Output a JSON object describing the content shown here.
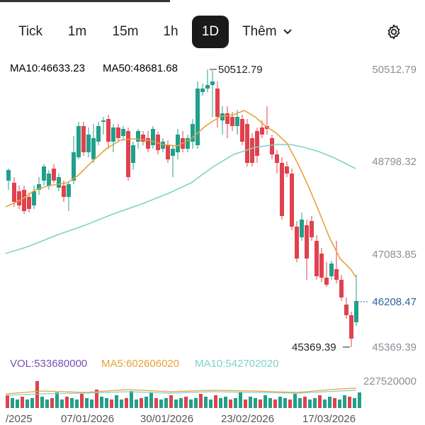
{
  "tabs": {
    "tick": "Tick",
    "m1": "1m",
    "m15": "15m",
    "h1": "1h",
    "d1": "1D",
    "more": "Thêm",
    "active": "1D"
  },
  "colors": {
    "up": "#20a08a",
    "down": "#e0414e",
    "ma10": "#e3a33a",
    "ma50": "#7fd3c6",
    "vol": "#7a4fb3",
    "current_price": "#2f5f9f"
  },
  "main_legend": {
    "ma10": "MA10:46633.23",
    "ma50": "MA50:48681.68"
  },
  "price_axis": {
    "p1": "50512.79",
    "p2": "48798.32",
    "p3": "47083.85",
    "current": "46208.47",
    "p4": "45369.39"
  },
  "annotations": {
    "high": "50512.79",
    "low": "45369.39"
  },
  "volume_legend": {
    "vol": "VOL:533680000",
    "ma5": "MA5:602606020",
    "ma10": "MA10:542702020",
    "max": "227520000"
  },
  "dates": {
    "d0": "/2025",
    "d1": "07/01/2026",
    "d2": "30/01/2026",
    "d3": "23/02/2026",
    "d4": "17/03/2026"
  },
  "icons": {
    "settings": "gear-icon",
    "more": "chevron-down-icon"
  }
}
